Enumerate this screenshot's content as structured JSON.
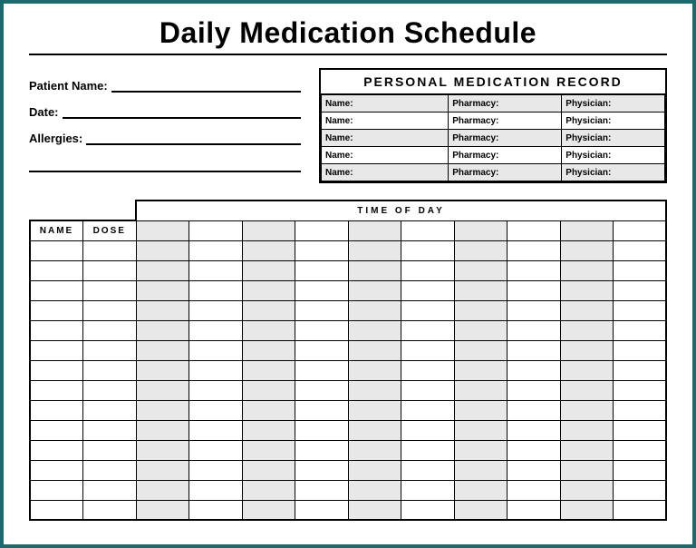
{
  "title": "Daily Medication Schedule",
  "patient": {
    "name_label": "Patient Name:",
    "date_label": "Date:",
    "allergies_label": "Allergies:"
  },
  "record": {
    "title": "PERSONAL MEDICATION RECORD",
    "col_name": "Name:",
    "col_pharmacy": "Pharmacy:",
    "col_physician": "Physician:",
    "row_count": 5,
    "shaded_rows": [
      0,
      2,
      4
    ]
  },
  "schedule": {
    "time_of_day_label": "TIME OF DAY",
    "name_header": "NAME",
    "dose_header": "DOSE",
    "time_slots": 10,
    "data_rows": 14,
    "shaded_time_cols": [
      0,
      2,
      4,
      6,
      8
    ],
    "colors": {
      "shaded_bg": "#e8e8e8",
      "border": "#000000",
      "page_border": "#1a6b6e"
    }
  }
}
